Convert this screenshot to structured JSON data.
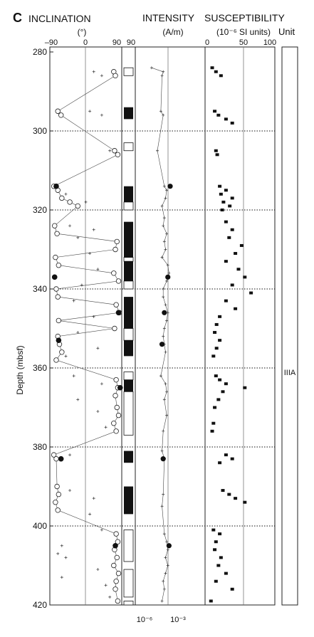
{
  "panel_letter": "C",
  "headers": {
    "inclination": "INCLINATION",
    "inclination_unit": "(°)",
    "intensity": "INTENSITY",
    "intensity_unit": "(A/m)",
    "susceptibility": "SUSCEPTIBILITY",
    "susceptibility_unit": "(10⁻⁶ SI units)",
    "unit": "Unit"
  },
  "y_axis": {
    "label": "Depth (mbsf)",
    "range": [
      280,
      420
    ],
    "ticks": [
      "280",
      "300",
      "320",
      "340",
      "360",
      "380",
      "400",
      "420"
    ]
  },
  "inclination_ticks": [
    "–90",
    "0",
    "90"
  ],
  "polarity_ticks": [
    "90"
  ],
  "intensity_ticks": [
    "10⁻⁶",
    "10⁻³"
  ],
  "susceptibility_ticks": [
    "0",
    "50",
    "100"
  ],
  "unit_label": "IIIA",
  "chart_data": {
    "type": "scatter",
    "y_field": "depth_mbsf",
    "ylim": [
      420,
      280
    ],
    "dotted_reference_depths": [
      300,
      320,
      340,
      360,
      380,
      400
    ],
    "inclination": {
      "xlim": [
        -90,
        90
      ],
      "open_circles": [
        [
          285,
          70
        ],
        [
          286,
          74
        ],
        [
          295,
          -70
        ],
        [
          296,
          -62
        ],
        [
          305,
          72
        ],
        [
          306,
          80
        ],
        [
          314,
          -80
        ],
        [
          315,
          -70
        ],
        [
          317,
          -60
        ],
        [
          318,
          -40
        ],
        [
          319,
          -20
        ],
        [
          324,
          -78
        ],
        [
          326,
          -72
        ],
        [
          328,
          78
        ],
        [
          330,
          74
        ],
        [
          332,
          -76
        ],
        [
          334,
          -68
        ],
        [
          336,
          70
        ],
        [
          338,
          82
        ],
        [
          340,
          -74
        ],
        [
          342,
          -70
        ],
        [
          344,
          76
        ],
        [
          346,
          84
        ],
        [
          348,
          -68
        ],
        [
          350,
          72
        ],
        [
          352,
          -70
        ],
        [
          354,
          -66
        ],
        [
          356,
          -60
        ],
        [
          358,
          -74
        ],
        [
          363,
          76
        ],
        [
          365,
          80
        ],
        [
          367,
          74
        ],
        [
          370,
          78
        ],
        [
          372,
          82
        ],
        [
          374,
          70
        ],
        [
          376,
          76
        ],
        [
          382,
          -80
        ],
        [
          383,
          -74
        ],
        [
          390,
          -72
        ],
        [
          392,
          -68
        ],
        [
          394,
          -76
        ],
        [
          396,
          -70
        ],
        [
          402,
          76
        ],
        [
          404,
          80
        ],
        [
          406,
          72
        ],
        [
          408,
          78
        ],
        [
          410,
          70
        ],
        [
          412,
          82
        ],
        [
          414,
          76
        ],
        [
          416,
          74
        ],
        [
          419,
          80
        ]
      ],
      "filled_circles": [
        [
          314,
          -74
        ],
        [
          337,
          -78
        ],
        [
          346,
          82
        ],
        [
          353,
          -68
        ],
        [
          365,
          86
        ],
        [
          383,
          -62
        ],
        [
          405,
          74
        ]
      ],
      "crosses": [
        [
          285,
          20
        ],
        [
          286,
          40
        ],
        [
          295,
          10
        ],
        [
          296,
          40
        ],
        [
          305,
          60
        ],
        [
          316,
          -50
        ],
        [
          318,
          0
        ],
        [
          324,
          -40
        ],
        [
          325,
          20
        ],
        [
          327,
          -20
        ],
        [
          331,
          10
        ],
        [
          335,
          30
        ],
        [
          339,
          -10
        ],
        [
          343,
          -30
        ],
        [
          347,
          20
        ],
        [
          351,
          -20
        ],
        [
          355,
          30
        ],
        [
          357,
          -50
        ],
        [
          362,
          -30
        ],
        [
          364,
          40
        ],
        [
          368,
          -20
        ],
        [
          371,
          30
        ],
        [
          375,
          50
        ],
        [
          382,
          -40
        ],
        [
          391,
          -40
        ],
        [
          393,
          20
        ],
        [
          397,
          10
        ],
        [
          401,
          40
        ],
        [
          405,
          -60
        ],
        [
          407,
          -70
        ],
        [
          408,
          -50
        ],
        [
          411,
          30
        ],
        [
          413,
          -60
        ],
        [
          415,
          50
        ],
        [
          418,
          60
        ]
      ]
    },
    "polarity": {
      "normal_black_intervals": [
        [
          294,
          297
        ],
        [
          314,
          318
        ],
        [
          323,
          332
        ],
        [
          333,
          338
        ],
        [
          342,
          350
        ],
        [
          353,
          357
        ],
        [
          363,
          366
        ],
        [
          381,
          384
        ],
        [
          390,
          397
        ]
      ],
      "reversed_white_intervals": [
        [
          284,
          286
        ],
        [
          303,
          305
        ],
        [
          318,
          320
        ],
        [
          332,
          333
        ],
        [
          338,
          340
        ],
        [
          350,
          353
        ],
        [
          361,
          363
        ],
        [
          366,
          377
        ],
        [
          401,
          409
        ],
        [
          411,
          418
        ],
        [
          419,
          420
        ]
      ]
    },
    "intensity": {
      "xlim_log10": [
        -6,
        0
      ],
      "points": [
        [
          284,
          -4.6
        ],
        [
          285,
          -3.6
        ],
        [
          286,
          -3.7
        ],
        [
          295,
          -3.8
        ],
        [
          296,
          -3.6
        ],
        [
          305,
          -4.1
        ],
        [
          314,
          -3.5
        ],
        [
          315,
          -3.3
        ],
        [
          317,
          -3.4
        ],
        [
          319,
          -3.7
        ],
        [
          322,
          -3.5
        ],
        [
          324,
          -3.6
        ],
        [
          326,
          -3.3
        ],
        [
          328,
          -3.5
        ],
        [
          330,
          -3.4
        ],
        [
          332,
          -3.7
        ],
        [
          334,
          -3.2
        ],
        [
          336,
          -3.1
        ],
        [
          338,
          -3.3
        ],
        [
          340,
          -3.6
        ],
        [
          342,
          -3.6
        ],
        [
          344,
          -3.4
        ],
        [
          346,
          -3.2
        ],
        [
          348,
          -3.3
        ],
        [
          350,
          -3.5
        ],
        [
          352,
          -3.6
        ],
        [
          354,
          -3.5
        ],
        [
          356,
          -3.4
        ],
        [
          362,
          -3.8
        ],
        [
          364,
          -3.4
        ],
        [
          366,
          -3.3
        ],
        [
          368,
          -3.5
        ],
        [
          372,
          -3.3
        ],
        [
          376,
          -3.6
        ],
        [
          381,
          -3.7
        ],
        [
          383,
          -3.5
        ],
        [
          392,
          -3.6
        ],
        [
          395,
          -3.7
        ],
        [
          402,
          -3.5
        ],
        [
          404,
          -3.3
        ],
        [
          406,
          -3.2
        ],
        [
          408,
          -3.4
        ],
        [
          410,
          -3.2
        ],
        [
          412,
          -3.4
        ],
        [
          414,
          -3.6
        ],
        [
          416,
          -3.5
        ],
        [
          419,
          -3.7
        ]
      ],
      "filled_circles": [
        [
          314,
          -3.0
        ],
        [
          337,
          -3.2
        ],
        [
          346,
          -3.5
        ],
        [
          354,
          -3.7
        ],
        [
          383,
          -3.6
        ],
        [
          405,
          -3.1
        ]
      ]
    },
    "susceptibility": {
      "xlim": [
        0,
        100
      ],
      "points": [
        [
          284,
          8
        ],
        [
          285,
          14
        ],
        [
          286,
          22
        ],
        [
          295,
          12
        ],
        [
          296,
          18
        ],
        [
          297,
          30
        ],
        [
          298,
          40
        ],
        [
          305,
          14
        ],
        [
          306,
          16
        ],
        [
          314,
          20
        ],
        [
          315,
          30
        ],
        [
          316,
          22
        ],
        [
          317,
          40
        ],
        [
          318,
          26
        ],
        [
          319,
          36
        ],
        [
          320,
          24
        ],
        [
          323,
          30
        ],
        [
          325,
          40
        ],
        [
          327,
          35
        ],
        [
          329,
          55
        ],
        [
          331,
          45
        ],
        [
          333,
          30
        ],
        [
          335,
          50
        ],
        [
          337,
          60
        ],
        [
          339,
          40
        ],
        [
          341,
          70
        ],
        [
          343,
          30
        ],
        [
          345,
          45
        ],
        [
          347,
          20
        ],
        [
          349,
          15
        ],
        [
          351,
          12
        ],
        [
          353,
          20
        ],
        [
          355,
          15
        ],
        [
          357,
          10
        ],
        [
          362,
          14
        ],
        [
          363,
          20
        ],
        [
          364,
          30
        ],
        [
          365,
          60
        ],
        [
          366,
          25
        ],
        [
          368,
          18
        ],
        [
          370,
          12
        ],
        [
          374,
          10
        ],
        [
          376,
          8
        ],
        [
          382,
          30
        ],
        [
          383,
          40
        ],
        [
          384,
          20
        ],
        [
          391,
          25
        ],
        [
          392,
          35
        ],
        [
          393,
          45
        ],
        [
          394,
          60
        ],
        [
          401,
          10
        ],
        [
          402,
          20
        ],
        [
          404,
          14
        ],
        [
          406,
          12
        ],
        [
          408,
          22
        ],
        [
          410,
          18
        ],
        [
          412,
          30
        ],
        [
          414,
          14
        ],
        [
          416,
          40
        ],
        [
          419,
          6
        ]
      ]
    }
  }
}
